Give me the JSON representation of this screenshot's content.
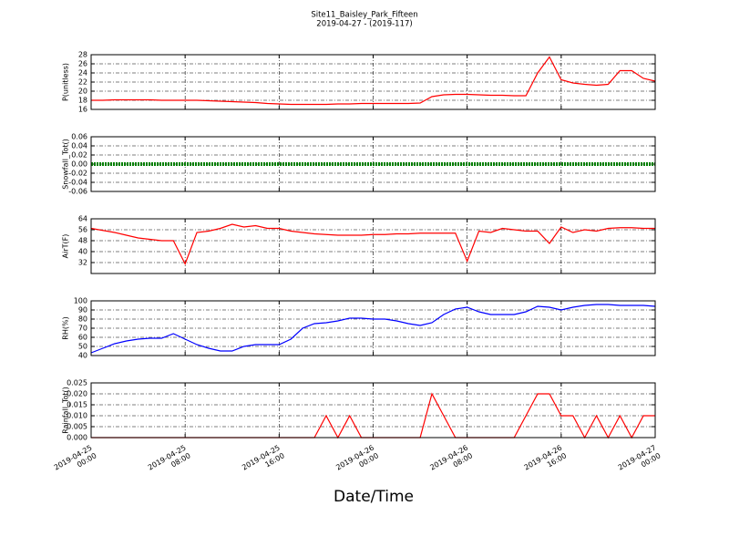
{
  "title": "Site11_Baisley_Park_Fifteen",
  "subtitle": "2019-04-27 - (2019-117)",
  "xlabel": "Date/Time",
  "chart_data": [
    {
      "type": "line",
      "ylabel": "P(unitless)",
      "grid": true,
      "x": [
        "2019-04-25 00:00",
        "2019-04-25 01:00",
        "2019-04-25 02:00",
        "2019-04-25 03:00",
        "2019-04-25 04:00",
        "2019-04-25 05:00",
        "2019-04-25 06:00",
        "2019-04-25 07:00",
        "2019-04-25 08:00",
        "2019-04-25 09:00",
        "2019-04-25 10:00",
        "2019-04-25 11:00",
        "2019-04-25 12:00",
        "2019-04-25 13:00",
        "2019-04-25 14:00",
        "2019-04-25 15:00",
        "2019-04-25 16:00",
        "2019-04-25 17:00",
        "2019-04-25 18:00",
        "2019-04-25 19:00",
        "2019-04-25 20:00",
        "2019-04-25 21:00",
        "2019-04-25 22:00",
        "2019-04-25 23:00",
        "2019-04-26 00:00",
        "2019-04-26 01:00",
        "2019-04-26 02:00",
        "2019-04-26 03:00",
        "2019-04-26 04:00",
        "2019-04-26 05:00",
        "2019-04-26 06:00",
        "2019-04-26 07:00",
        "2019-04-26 08:00",
        "2019-04-26 09:00",
        "2019-04-26 10:00",
        "2019-04-26 11:00",
        "2019-04-26 12:00",
        "2019-04-26 13:00",
        "2019-04-26 14:00",
        "2019-04-26 15:00",
        "2019-04-26 16:00",
        "2019-04-26 17:00",
        "2019-04-26 18:00",
        "2019-04-26 19:00",
        "2019-04-26 20:00",
        "2019-04-26 21:00",
        "2019-04-26 22:00",
        "2019-04-26 23:00",
        "2019-04-27 00:00"
      ],
      "xlim": [
        "2019-04-25 00:00",
        "2019-04-27 00:00"
      ],
      "xticks": [
        "2019-04-25 00:00",
        "2019-04-25 08:00",
        "2019-04-25 16:00",
        "2019-04-26 00:00",
        "2019-04-26 08:00",
        "2019-04-26 16:00",
        "2019-04-27 00:00"
      ],
      "ylim": [
        16,
        28
      ],
      "yticks": [
        16,
        18,
        20,
        22,
        24,
        26,
        28
      ],
      "series": [
        {
          "color": "#ff0000",
          "values": [
            18,
            18,
            18.1,
            18.1,
            18.1,
            18.1,
            18,
            18,
            18,
            18,
            17.9,
            17.8,
            17.7,
            17.6,
            17.5,
            17.3,
            17.2,
            17.1,
            17.1,
            17.1,
            17.1,
            17.2,
            17.2,
            17.3,
            17.3,
            17.3,
            17.3,
            17.3,
            17.4,
            18.8,
            19.2,
            19.3,
            19.3,
            19.2,
            19.1,
            19.1,
            19,
            19,
            24,
            27.5,
            22.5,
            21.8,
            21.5,
            21.3,
            21.5,
            24.5,
            24.5,
            22.8,
            22.2
          ]
        }
      ]
    },
    {
      "type": "line",
      "ylabel": "Snowfall_Tot()",
      "grid": true,
      "x": [
        "2019-04-25 00:00",
        "2019-04-25 01:00",
        "2019-04-25 02:00",
        "2019-04-25 03:00",
        "2019-04-25 04:00",
        "2019-04-25 05:00",
        "2019-04-25 06:00",
        "2019-04-25 07:00",
        "2019-04-25 08:00",
        "2019-04-25 09:00",
        "2019-04-25 10:00",
        "2019-04-25 11:00",
        "2019-04-25 12:00",
        "2019-04-25 13:00",
        "2019-04-25 14:00",
        "2019-04-25 15:00",
        "2019-04-25 16:00",
        "2019-04-25 17:00",
        "2019-04-25 18:00",
        "2019-04-25 19:00",
        "2019-04-25 20:00",
        "2019-04-25 21:00",
        "2019-04-25 22:00",
        "2019-04-25 23:00",
        "2019-04-26 00:00",
        "2019-04-26 01:00",
        "2019-04-26 02:00",
        "2019-04-26 03:00",
        "2019-04-26 04:00",
        "2019-04-26 05:00",
        "2019-04-26 06:00",
        "2019-04-26 07:00",
        "2019-04-26 08:00",
        "2019-04-26 09:00",
        "2019-04-26 10:00",
        "2019-04-26 11:00",
        "2019-04-26 12:00",
        "2019-04-26 13:00",
        "2019-04-26 14:00",
        "2019-04-26 15:00",
        "2019-04-26 16:00",
        "2019-04-26 17:00",
        "2019-04-26 18:00",
        "2019-04-26 19:00",
        "2019-04-26 20:00",
        "2019-04-26 21:00",
        "2019-04-26 22:00",
        "2019-04-26 23:00",
        "2019-04-27 00:00"
      ],
      "xlim": [
        "2019-04-25 00:00",
        "2019-04-27 00:00"
      ],
      "xticks": [
        "2019-04-25 00:00",
        "2019-04-25 08:00",
        "2019-04-25 16:00",
        "2019-04-26 00:00",
        "2019-04-26 08:00",
        "2019-04-26 16:00",
        "2019-04-27 00:00"
      ],
      "ylim": [
        -0.06,
        0.06
      ],
      "yticks": [
        -0.06,
        -0.04,
        -0.02,
        {
          "value": 0,
          "label": "0.00"
        },
        0.02,
        0.04,
        0.06
      ],
      "series": [
        {
          "color": "#008000",
          "linewidth": 4,
          "values": [
            0,
            0,
            0,
            0,
            0,
            0,
            0,
            0,
            0,
            0,
            0,
            0,
            0,
            0,
            0,
            0,
            0,
            0,
            0,
            0,
            0,
            0,
            0,
            0,
            0,
            0,
            0,
            0,
            0,
            0,
            0,
            0,
            0,
            0,
            0,
            0,
            0,
            0,
            0,
            0,
            0,
            0,
            0,
            0,
            0,
            0,
            0,
            0,
            0
          ]
        }
      ]
    },
    {
      "type": "line",
      "ylabel": "AirT(F)",
      "grid": true,
      "x": [
        "2019-04-25 00:00",
        "2019-04-25 01:00",
        "2019-04-25 02:00",
        "2019-04-25 03:00",
        "2019-04-25 04:00",
        "2019-04-25 05:00",
        "2019-04-25 06:00",
        "2019-04-25 07:00",
        "2019-04-25 08:00",
        "2019-04-25 09:00",
        "2019-04-25 10:00",
        "2019-04-25 11:00",
        "2019-04-25 12:00",
        "2019-04-25 13:00",
        "2019-04-25 14:00",
        "2019-04-25 15:00",
        "2019-04-25 16:00",
        "2019-04-25 17:00",
        "2019-04-25 18:00",
        "2019-04-25 19:00",
        "2019-04-25 20:00",
        "2019-04-25 21:00",
        "2019-04-25 22:00",
        "2019-04-25 23:00",
        "2019-04-26 00:00",
        "2019-04-26 01:00",
        "2019-04-26 02:00",
        "2019-04-26 03:00",
        "2019-04-26 04:00",
        "2019-04-26 05:00",
        "2019-04-26 06:00",
        "2019-04-26 07:00",
        "2019-04-26 08:00",
        "2019-04-26 09:00",
        "2019-04-26 10:00",
        "2019-04-26 11:00",
        "2019-04-26 12:00",
        "2019-04-26 13:00",
        "2019-04-26 14:00",
        "2019-04-26 15:00",
        "2019-04-26 16:00",
        "2019-04-26 17:00",
        "2019-04-26 18:00",
        "2019-04-26 19:00",
        "2019-04-26 20:00",
        "2019-04-26 21:00",
        "2019-04-26 22:00",
        "2019-04-26 23:00",
        "2019-04-27 00:00"
      ],
      "xlim": [
        "2019-04-25 00:00",
        "2019-04-27 00:00"
      ],
      "xticks": [
        "2019-04-25 00:00",
        "2019-04-25 08:00",
        "2019-04-25 16:00",
        "2019-04-26 00:00",
        "2019-04-26 08:00",
        "2019-04-26 16:00",
        "2019-04-27 00:00"
      ],
      "ylim": [
        24,
        64
      ],
      "yticks": [
        32,
        40,
        48,
        56,
        64
      ],
      "series": [
        {
          "color": "#ff0000",
          "values": [
            57,
            55.5,
            54,
            52,
            50,
            49,
            48,
            48,
            31,
            54,
            55,
            57,
            60,
            58,
            59,
            57,
            57,
            55,
            54,
            53,
            52.5,
            52,
            52,
            52,
            52.5,
            52.5,
            53,
            53,
            53.5,
            53.5,
            53.5,
            53.5,
            33,
            55,
            54,
            57,
            56,
            55,
            55,
            46,
            58,
            54,
            56,
            55,
            57,
            57.5,
            57.5,
            57,
            57
          ]
        }
      ]
    },
    {
      "type": "line",
      "ylabel": "RH(%)",
      "grid": true,
      "x": [
        "2019-04-25 00:00",
        "2019-04-25 01:00",
        "2019-04-25 02:00",
        "2019-04-25 03:00",
        "2019-04-25 04:00",
        "2019-04-25 05:00",
        "2019-04-25 06:00",
        "2019-04-25 07:00",
        "2019-04-25 08:00",
        "2019-04-25 09:00",
        "2019-04-25 10:00",
        "2019-04-25 11:00",
        "2019-04-25 12:00",
        "2019-04-25 13:00",
        "2019-04-25 14:00",
        "2019-04-25 15:00",
        "2019-04-25 16:00",
        "2019-04-25 17:00",
        "2019-04-25 18:00",
        "2019-04-25 19:00",
        "2019-04-25 20:00",
        "2019-04-25 21:00",
        "2019-04-25 22:00",
        "2019-04-25 23:00",
        "2019-04-26 00:00",
        "2019-04-26 01:00",
        "2019-04-26 02:00",
        "2019-04-26 03:00",
        "2019-04-26 04:00",
        "2019-04-26 05:00",
        "2019-04-26 06:00",
        "2019-04-26 07:00",
        "2019-04-26 08:00",
        "2019-04-26 09:00",
        "2019-04-26 10:00",
        "2019-04-26 11:00",
        "2019-04-26 12:00",
        "2019-04-26 13:00",
        "2019-04-26 14:00",
        "2019-04-26 15:00",
        "2019-04-26 16:00",
        "2019-04-26 17:00",
        "2019-04-26 18:00",
        "2019-04-26 19:00",
        "2019-04-26 20:00",
        "2019-04-26 21:00",
        "2019-04-26 22:00",
        "2019-04-26 23:00",
        "2019-04-27 00:00"
      ],
      "xlim": [
        "2019-04-25 00:00",
        "2019-04-27 00:00"
      ],
      "xticks": [
        "2019-04-25 00:00",
        "2019-04-25 08:00",
        "2019-04-25 16:00",
        "2019-04-26 00:00",
        "2019-04-26 08:00",
        "2019-04-26 16:00",
        "2019-04-27 00:00"
      ],
      "ylim": [
        40,
        100
      ],
      "yticks": [
        40,
        50,
        60,
        70,
        80,
        90,
        100
      ],
      "series": [
        {
          "color": "#0000ff",
          "values": [
            43,
            48,
            53,
            56,
            58,
            59,
            59,
            64,
            58,
            52,
            48,
            45,
            45,
            50,
            52,
            52,
            52,
            58,
            70,
            75,
            76,
            78,
            81,
            81,
            80,
            80,
            78,
            75,
            73,
            76,
            85,
            91,
            93,
            88,
            85,
            85,
            85,
            88,
            94,
            93,
            90,
            93,
            95,
            96,
            96,
            95,
            95,
            95,
            94
          ]
        }
      ]
    },
    {
      "type": "line",
      "ylabel": "Rainfall_Tot()",
      "grid": true,
      "x": [
        "2019-04-25 00:00",
        "2019-04-25 01:00",
        "2019-04-25 02:00",
        "2019-04-25 03:00",
        "2019-04-25 04:00",
        "2019-04-25 05:00",
        "2019-04-25 06:00",
        "2019-04-25 07:00",
        "2019-04-25 08:00",
        "2019-04-25 09:00",
        "2019-04-25 10:00",
        "2019-04-25 11:00",
        "2019-04-25 12:00",
        "2019-04-25 13:00",
        "2019-04-25 14:00",
        "2019-04-25 15:00",
        "2019-04-25 16:00",
        "2019-04-25 17:00",
        "2019-04-25 18:00",
        "2019-04-25 19:00",
        "2019-04-25 20:00",
        "2019-04-25 21:00",
        "2019-04-25 22:00",
        "2019-04-25 23:00",
        "2019-04-26 00:00",
        "2019-04-26 01:00",
        "2019-04-26 02:00",
        "2019-04-26 03:00",
        "2019-04-26 04:00",
        "2019-04-26 05:00",
        "2019-04-26 06:00",
        "2019-04-26 07:00",
        "2019-04-26 08:00",
        "2019-04-26 09:00",
        "2019-04-26 10:00",
        "2019-04-26 11:00",
        "2019-04-26 12:00",
        "2019-04-26 13:00",
        "2019-04-26 14:00",
        "2019-04-26 15:00",
        "2019-04-26 16:00",
        "2019-04-26 17:00",
        "2019-04-26 18:00",
        "2019-04-26 19:00",
        "2019-04-26 20:00",
        "2019-04-26 21:00",
        "2019-04-26 22:00",
        "2019-04-26 23:00",
        "2019-04-27 00:00"
      ],
      "xlim": [
        "2019-04-25 00:00",
        "2019-04-27 00:00"
      ],
      "xticks": [
        "2019-04-25 00:00",
        "2019-04-25 08:00",
        "2019-04-25 16:00",
        "2019-04-26 00:00",
        "2019-04-26 08:00",
        "2019-04-26 16:00",
        "2019-04-27 00:00"
      ],
      "show_xtick_labels": true,
      "ylim": [
        0,
        0.025
      ],
      "yticks": [
        {
          "value": 0,
          "label": "0.000"
        },
        0.005,
        {
          "value": 0.01,
          "label": "0.010"
        },
        0.015,
        {
          "value": 0.02,
          "label": "0.020"
        },
        0.025
      ],
      "series": [
        {
          "color": "#ff0000",
          "values": [
            0,
            0,
            0,
            0,
            0,
            0,
            0,
            0,
            0,
            0,
            0,
            0,
            0,
            0,
            0,
            0,
            0,
            0,
            0,
            0,
            0.01,
            0,
            0.01,
            0,
            0,
            0,
            0,
            0,
            0,
            0.02,
            0.01,
            0,
            0,
            0,
            0,
            0,
            0,
            0.01,
            0.02,
            0.02,
            0.01,
            0.01,
            0,
            0.01,
            0,
            0.01,
            0,
            0.01,
            0.01
          ]
        }
      ]
    }
  ]
}
